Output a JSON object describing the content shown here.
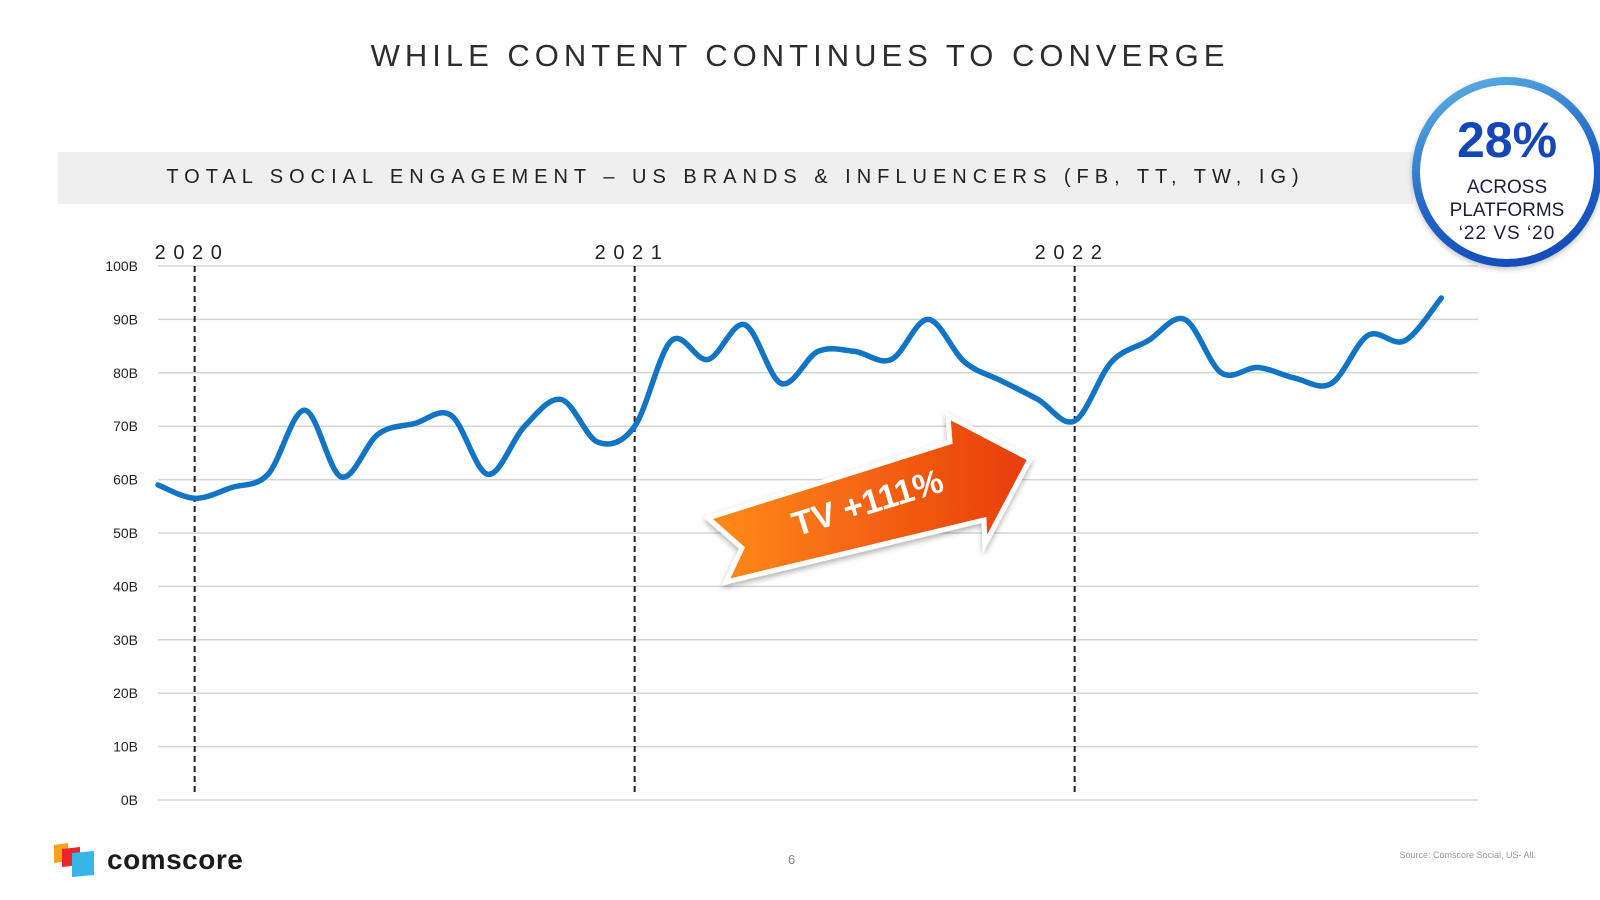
{
  "slide": {
    "title": "WHILE CONTENT CONTINUES TO CONVERGE",
    "subtitle": "TOTAL SOCIAL ENGAGEMENT – US BRANDS & INFLUENCERS (FB, TT, TW, IG)",
    "page_number": "6",
    "source": "Source: Comscore  Social, US- All.",
    "logo_text": "comscore"
  },
  "callout": {
    "value": "28%",
    "line1": "ACROSS",
    "line2": "PLATFORMS",
    "line3": "‘22 VS ‘20"
  },
  "colors": {
    "line": "#1274c4",
    "grid": "#d5d5d5",
    "arrow_start": "#ff8c1a",
    "arrow_end": "#e83c0b",
    "badge": "#1546b6"
  },
  "chart_data": {
    "type": "line",
    "title": "TOTAL SOCIAL ENGAGEMENT – US BRANDS & INFLUENCERS (FB, TT, TW, IG)",
    "xlabel": "",
    "ylabel": "",
    "ylim": [
      0,
      100
    ],
    "yticks": [
      "0B",
      "10B",
      "20B",
      "30B",
      "40B",
      "50B",
      "60B",
      "70B",
      "80B",
      "90B",
      "100B"
    ],
    "x_range": [
      0,
      36
    ],
    "year_markers": [
      {
        "label": "2 0 2 0",
        "x": 1
      },
      {
        "label": "2 0 2 1",
        "x": 13
      },
      {
        "label": "2 0 2 2",
        "x": 25
      }
    ],
    "annotation": "TV +111%",
    "series": [
      {
        "name": "Total Social Engagement (B)",
        "x": [
          0,
          1,
          2,
          3,
          4,
          5,
          6,
          7,
          8,
          9,
          10,
          11,
          12,
          13,
          14,
          15,
          16,
          17,
          18,
          19,
          20,
          21,
          22,
          23,
          24,
          25,
          26,
          27,
          28,
          29,
          30,
          31,
          32,
          33,
          34,
          35,
          36
        ],
        "values": [
          59,
          56.5,
          58.5,
          61,
          73,
          60.5,
          68.5,
          70.5,
          72,
          61,
          70,
          75,
          67,
          70,
          86,
          82.5,
          89,
          78,
          84,
          84,
          82.5,
          90,
          82,
          78.5,
          75,
          71,
          82,
          86,
          90,
          80,
          81,
          79,
          78,
          87,
          86,
          94,
          null
        ]
      }
    ]
  }
}
